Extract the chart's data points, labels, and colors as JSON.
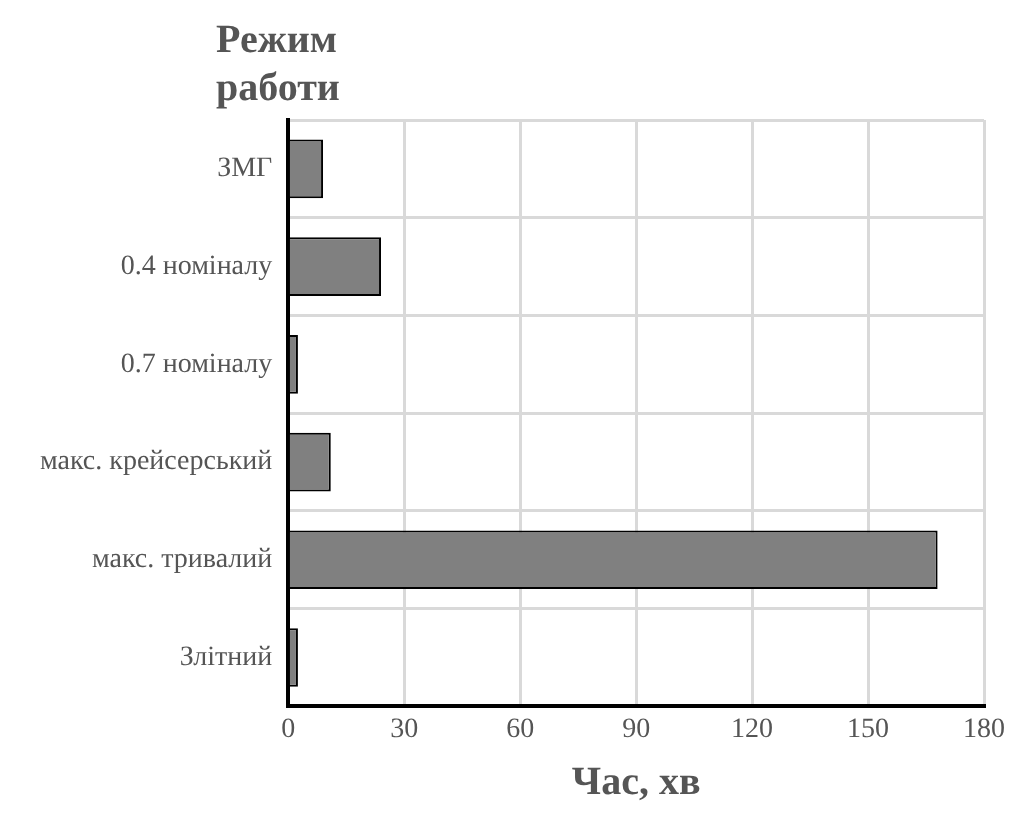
{
  "chart_data": {
    "type": "bar",
    "orientation": "horizontal",
    "ylabel": "Режим работи",
    "xlabel": "Час, хв",
    "categories": [
      "ЗМГ",
      "0.4 номіналу",
      "0.7 номіналу",
      "макс. крейсерський",
      "макс. тривалий",
      "Злітний"
    ],
    "values": [
      9,
      24,
      2.5,
      11,
      168,
      2.5
    ],
    "color": "#808080",
    "xlim": [
      0,
      180
    ],
    "xticks": [
      0,
      30,
      60,
      90,
      120,
      150,
      180
    ],
    "grid": true
  }
}
